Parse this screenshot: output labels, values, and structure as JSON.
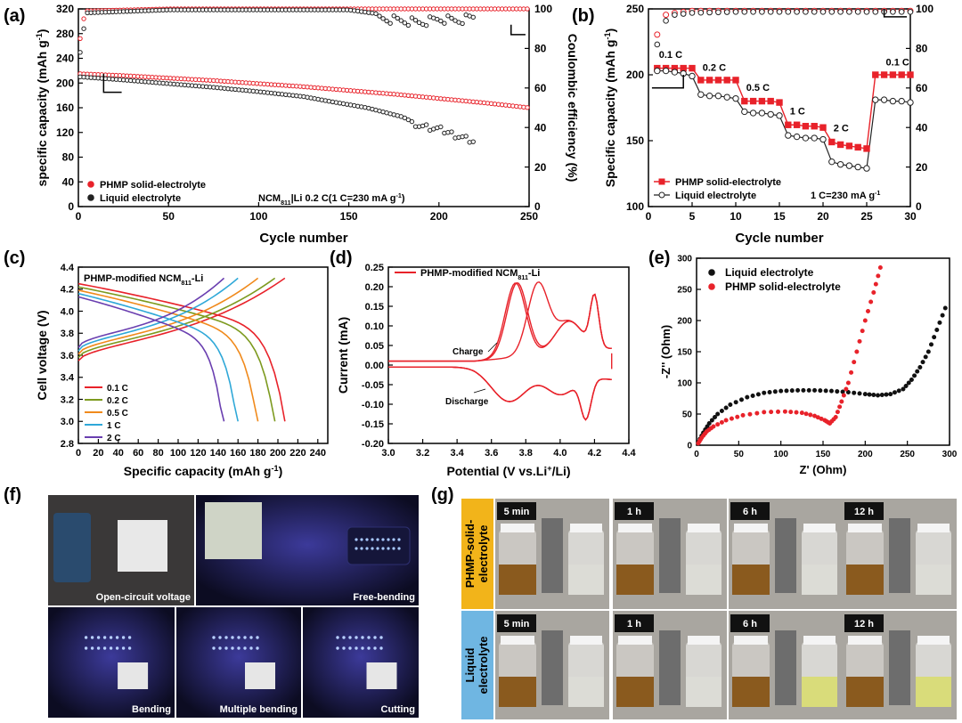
{
  "figure": {
    "panel_labels": [
      "(a)",
      "(b)",
      "(c)",
      "(d)",
      "(e)",
      "(f)",
      "(g)"
    ]
  },
  "chart_data": [
    {
      "id": "a",
      "type": "scatter",
      "xlabel": "Cycle number",
      "ylabel": "specific capacity (mAh g",
      "ylabel_sup": "-1",
      "y2label": "Coulombic efficiency (%)",
      "xlim": [
        0,
        250
      ],
      "ylim": [
        0,
        320
      ],
      "y2lim": [
        0,
        100
      ],
      "xticks": [
        0,
        50,
        100,
        150,
        200,
        250
      ],
      "yticks": [
        0,
        40,
        80,
        120,
        160,
        200,
        240,
        280,
        320
      ],
      "y2ticks": [
        0,
        20,
        40,
        60,
        80,
        100
      ],
      "annotation_pre": "NCM",
      "annotation_sub": "811",
      "annotation_post": "|Li  0.2 C(1 C=230 mA g",
      "annotation_sup": "-1",
      "annotation_end": ")",
      "legend": [
        "PHMP solid-electrolyte",
        "Liquid electrolyte"
      ],
      "legend_position": "bottom-left",
      "series": [
        {
          "name": "PHMP solid-electrolyte",
          "color": "#e8222a",
          "axis": "left",
          "x": [
            1,
            25,
            50,
            75,
            100,
            125,
            150,
            175,
            200,
            225,
            250
          ],
          "y": [
            215,
            212,
            208,
            204,
            199,
            194,
            188,
            182,
            175,
            168,
            160
          ]
        },
        {
          "name": "Liquid electrolyte",
          "color": "#222222",
          "axis": "left",
          "x": [
            1,
            25,
            50,
            75,
            100,
            125,
            140,
            160,
            180,
            190,
            200,
            210,
            220
          ],
          "y": [
            210,
            205,
            199,
            193,
            186,
            178,
            170,
            160,
            145,
            130,
            125,
            115,
            105
          ]
        },
        {
          "name": "PHMP solid-electrolyte CE",
          "color": "#e8222a",
          "axis": "right",
          "x": [
            1,
            3,
            5,
            50,
            100,
            150,
            200,
            250
          ],
          "y": [
            85,
            95,
            99,
            100,
            100,
            100,
            100,
            100
          ]
        },
        {
          "name": "Liquid electrolyte CE",
          "color": "#222222",
          "axis": "right",
          "x": [
            1,
            3,
            5,
            50,
            100,
            150,
            170,
            180,
            190,
            200,
            210,
            220
          ],
          "y": [
            78,
            90,
            98,
            99.5,
            99.5,
            99.5,
            97,
            96,
            95,
            97,
            96,
            98
          ]
        }
      ]
    },
    {
      "id": "b",
      "type": "line",
      "xlabel": "Cycle number",
      "ylabel": "Specific capacity (mAh g",
      "ylabel_sup": "-1",
      "y2label": "",
      "xlim": [
        0,
        30
      ],
      "ylim": [
        100,
        250
      ],
      "y2lim": [
        0,
        100
      ],
      "xticks": [
        0,
        5,
        10,
        15,
        20,
        25,
        30
      ],
      "yticks": [
        100,
        150,
        200,
        250
      ],
      "y2ticks": [
        0,
        20,
        40,
        60,
        80,
        100
      ],
      "rate_labels": [
        "0.1 C",
        "0.2 C",
        "0.5 C",
        "1 C",
        "2 C",
        "0.1 C"
      ],
      "annotation": "1 C=230 mA g",
      "annotation_sup": "-1",
      "legend": [
        "PHMP solid-electrolyte",
        "Liquid electrolyte"
      ],
      "legend_position": "bottom-left",
      "series": [
        {
          "name": "PHMP solid-electrolyte",
          "color": "#e8222a",
          "marker": "square",
          "x": [
            1,
            2,
            3,
            4,
            5,
            6,
            7,
            8,
            9,
            10,
            11,
            12,
            13,
            14,
            15,
            16,
            17,
            18,
            19,
            20,
            21,
            22,
            23,
            24,
            25,
            26,
            27,
            28,
            29,
            30
          ],
          "y": [
            205,
            205,
            205,
            205,
            205,
            196,
            196,
            196,
            196,
            196,
            180,
            180,
            180,
            180,
            179,
            162,
            162,
            161,
            161,
            160,
            149,
            147,
            146,
            145,
            144,
            200,
            200,
            200,
            200,
            200
          ]
        },
        {
          "name": "Liquid electrolyte",
          "color": "#222222",
          "marker": "circle",
          "x": [
            1,
            2,
            3,
            4,
            5,
            6,
            7,
            8,
            9,
            10,
            11,
            12,
            13,
            14,
            15,
            16,
            17,
            18,
            19,
            20,
            21,
            22,
            23,
            24,
            25,
            26,
            27,
            28,
            29,
            30
          ],
          "y": [
            203,
            203,
            202,
            201,
            199,
            185,
            184,
            184,
            183,
            182,
            172,
            171,
            171,
            170,
            169,
            154,
            153,
            152,
            152,
            151,
            134,
            132,
            131,
            130,
            129,
            181,
            181,
            180,
            180,
            179
          ]
        },
        {
          "name": "PHMP CE",
          "color": "#e8222a",
          "axis": "right",
          "x": [
            1,
            2,
            3,
            5,
            10,
            15,
            20,
            25,
            30
          ],
          "y": [
            87,
            97,
            98,
            99,
            99,
            99,
            99,
            99,
            99
          ]
        },
        {
          "name": "Liquid CE",
          "color": "#222222",
          "axis": "right",
          "x": [
            1,
            2,
            3,
            5,
            10,
            15,
            20,
            25,
            30
          ],
          "y": [
            82,
            94,
            97,
            98,
            98.5,
            98.5,
            98.5,
            98.5,
            98.5
          ]
        }
      ]
    },
    {
      "id": "c",
      "type": "line",
      "title": "PHMP-modified NCM",
      "title_sub": "811",
      "title_end": "-Li",
      "xlabel": "Specific capacity (mAh g",
      "xlabel_sup": "-1",
      "ylabel": "Cell voltage (V)",
      "xlim": [
        0,
        250
      ],
      "ylim": [
        2.8,
        4.4
      ],
      "xticks": [
        0,
        20,
        40,
        60,
        80,
        100,
        120,
        140,
        160,
        180,
        200,
        220,
        240
      ],
      "yticks": [
        2.8,
        3.0,
        3.2,
        3.4,
        3.6,
        3.8,
        4.0,
        4.2,
        4.4
      ],
      "legend_position": "bottom-left",
      "series": [
        {
          "name": "0.1 C",
          "color": "#e8222a",
          "capacity": 207
        },
        {
          "name": "0.2 C",
          "color": "#7d9a1f",
          "capacity": 197
        },
        {
          "name": "0.5 C",
          "color": "#f08a1c",
          "capacity": 180
        },
        {
          "name": "1 C",
          "color": "#2fa8d8",
          "capacity": 160
        },
        {
          "name": "2 C",
          "color": "#6a3fb0",
          "capacity": 146
        }
      ]
    },
    {
      "id": "d",
      "type": "line",
      "title": "PHMP-modified NCM",
      "title_sub": "811",
      "title_end": "-Li",
      "xlabel": "Potential (V vs.Li",
      "xlabel_sup": "+",
      "xlabel_end": "/Li)",
      "ylabel": "Current (mA)",
      "xlim": [
        3.0,
        4.4
      ],
      "ylim": [
        -0.2,
        0.25
      ],
      "xticks": [
        3.0,
        3.2,
        3.4,
        3.6,
        3.8,
        4.0,
        4.2,
        4.4
      ],
      "yticks": [
        -0.2,
        -0.15,
        -0.1,
        -0.05,
        0.0,
        0.05,
        0.1,
        0.15,
        0.2,
        0.25
      ],
      "annotations": [
        "Charge",
        "Discharge"
      ],
      "series": [
        {
          "name": "PHMP-modified NCM811-Li",
          "color": "#e8222a",
          "peaks": {
            "ox": [
              [
                3.75,
                0.205
              ],
              [
                3.88,
                0.19
              ],
              [
                4.2,
                0.16
              ]
            ],
            "red": [
              [
                3.7,
                -0.11
              ],
              [
                4.15,
                -0.14
              ]
            ]
          }
        }
      ]
    },
    {
      "id": "e",
      "type": "scatter",
      "xlabel": "Z' (Ohm)",
      "ylabel": "-Z'' (Ohm)",
      "xlim": [
        0,
        300
      ],
      "ylim": [
        0,
        300
      ],
      "xticks": [
        0,
        50,
        100,
        150,
        200,
        250,
        300
      ],
      "yticks": [
        0,
        50,
        100,
        150,
        200,
        250,
        300
      ],
      "legend": [
        "Liquid electrolyte",
        "PHMP solid-electrolyte"
      ],
      "legend_position": "top-left",
      "series": [
        {
          "name": "Liquid electrolyte",
          "color": "#111111",
          "x": [
            2,
            8,
            15,
            25,
            40,
            60,
            80,
            100,
            120,
            140,
            160,
            180,
            200,
            215,
            230,
            245,
            255,
            265,
            275,
            285,
            295
          ],
          "y": [
            5,
            20,
            35,
            50,
            65,
            77,
            84,
            87,
            88,
            88,
            87,
            85,
            82,
            80,
            82,
            90,
            105,
            125,
            150,
            185,
            220
          ]
        },
        {
          "name": "PHMP solid-electrolyte",
          "color": "#e8222a",
          "x": [
            2,
            6,
            12,
            20,
            35,
            55,
            80,
            105,
            125,
            140,
            152,
            158,
            165,
            172,
            180,
            190,
            200,
            210,
            218
          ],
          "y": [
            3,
            12,
            22,
            30,
            40,
            48,
            53,
            54,
            52,
            47,
            40,
            35,
            45,
            70,
            100,
            150,
            200,
            245,
            285
          ]
        }
      ]
    }
  ],
  "photos_f": [
    {
      "caption": "Open-circuit voltage"
    },
    {
      "caption": "Free-bending"
    },
    {
      "caption": "Bending"
    },
    {
      "caption": "Multiple bending"
    },
    {
      "caption": "Cutting"
    }
  ],
  "photos_g": {
    "row_labels": [
      "PHMP-solid-electrolyte",
      "Liquid electrolyte"
    ],
    "row_label_lines": [
      [
        "PHMP-solid-",
        "electrolyte"
      ],
      [
        "Liquid",
        "electrolyte"
      ]
    ],
    "row_label_colors": [
      "#f2b41a",
      "#6fb6e2"
    ],
    "times": [
      "5 min",
      "1 h",
      "6 h",
      "12 h"
    ]
  }
}
